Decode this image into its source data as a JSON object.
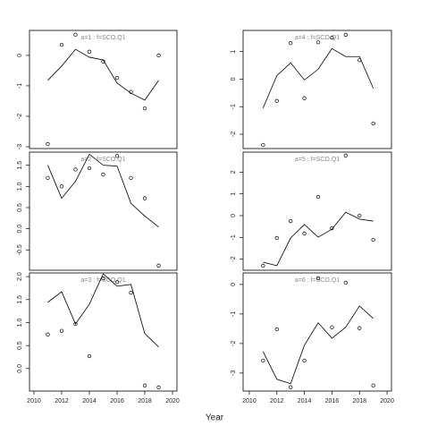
{
  "xlabel": "Year",
  "chart_data": [
    {
      "type": "scatter",
      "title": "a=1 : f=SCO.Q1",
      "x": [
        2011,
        2012,
        2013,
        2014,
        2015,
        2016,
        2017,
        2018,
        2019
      ],
      "values": [
        -2.91,
        0.35,
        0.68,
        0.12,
        -0.2,
        -0.74,
        -1.2,
        -1.74,
        0.0
      ],
      "fitted": [
        -0.82,
        -0.35,
        0.2,
        -0.06,
        -0.15,
        -0.91,
        -1.24,
        -1.47,
        -0.82
      ],
      "xlim": [
        2009.68,
        2020.32
      ],
      "ylim": [
        -3.06,
        0.82
      ],
      "yticks": [
        -3,
        -2,
        -1,
        0
      ],
      "xticks": []
    },
    {
      "type": "scatter",
      "title": "a=4 : f=SCO.Q1",
      "x": [
        2011,
        2012,
        2013,
        2014,
        2015,
        2016,
        2017,
        2018,
        2019
      ],
      "values": [
        -2.39,
        -0.79,
        1.31,
        -0.69,
        1.34,
        1.51,
        1.61,
        0.69,
        -1.61
      ],
      "fitted": [
        -1.05,
        0.13,
        0.59,
        -0.03,
        0.36,
        1.11,
        0.82,
        0.82,
        -0.33
      ],
      "xlim": [
        2009.55,
        2020.32
      ],
      "ylim": [
        -2.52,
        1.77
      ],
      "yticks": [
        -2,
        -1,
        0,
        1
      ],
      "xticks": []
    },
    {
      "type": "scatter",
      "title": "a=2 : f=SCO.Q1",
      "x": [
        2011,
        2012,
        2013,
        2014,
        2015,
        2016,
        2017,
        2018,
        2019
      ],
      "values": [
        1.2,
        1.0,
        1.4,
        1.43,
        1.28,
        1.72,
        1.2,
        0.72,
        -0.87
      ],
      "fitted": [
        1.5,
        0.72,
        1.12,
        1.76,
        1.5,
        1.48,
        0.6,
        0.3,
        0.04
      ],
      "xlim": [
        2009.68,
        2020.32
      ],
      "ylim": [
        -0.98,
        1.81
      ],
      "yticks": [
        -0.5,
        {
          "value": 0,
          "label": "0.0"
        },
        0.5,
        {
          "value": 1,
          "label": "1.0"
        },
        1.5
      ],
      "xticks": []
    },
    {
      "type": "scatter",
      "title": "a=5 : f=SCO.Q1",
      "x": [
        2011,
        2012,
        2013,
        2014,
        2015,
        2016,
        2017,
        2018,
        2019
      ],
      "values": [
        -2.3,
        -1.03,
        -0.25,
        -0.82,
        0.86,
        -0.58,
        2.76,
        0.0,
        -1.11
      ],
      "fitted": [
        -2.14,
        -2.3,
        -1.03,
        -0.41,
        -0.99,
        -0.62,
        0.16,
        -0.16,
        -0.25
      ],
      "xlim": [
        2009.55,
        2020.32
      ],
      "ylim": [
        -2.51,
        2.92
      ],
      "yticks": [
        -2,
        -1,
        0,
        1,
        2
      ],
      "xticks": []
    },
    {
      "type": "scatter",
      "title": "a=3 : f=SCO.Q1",
      "x": [
        2011,
        2012,
        2013,
        2014,
        2015,
        2016,
        2017,
        2018,
        2019
      ],
      "values": [
        0.74,
        0.82,
        0.97,
        0.27,
        1.96,
        1.88,
        1.65,
        -0.37,
        -0.41
      ],
      "fitted": [
        1.44,
        1.67,
        0.97,
        1.4,
        2.06,
        1.79,
        1.83,
        0.76,
        0.47
      ],
      "xlim": [
        2009.68,
        2020.32
      ],
      "ylim": [
        -0.49,
        2.08
      ],
      "yticks": [
        {
          "value": 0,
          "label": "0.0"
        },
        0.5,
        {
          "value": 1,
          "label": "1.0"
        },
        1.5,
        {
          "value": 2,
          "label": "2.0"
        }
      ],
      "xticks": [
        2010,
        2012,
        2014,
        2016,
        2018,
        2020
      ]
    },
    {
      "type": "scatter",
      "title": "a=6 : f=SCO.Q1",
      "x": [
        2011,
        2012,
        2013,
        2014,
        2015,
        2016,
        2017,
        2018,
        2019
      ],
      "values": [
        -2.58,
        -1.52,
        -3.48,
        -2.58,
        0.21,
        -1.45,
        0.06,
        -1.48,
        -3.42
      ],
      "fitted": [
        -2.27,
        -3.21,
        -3.36,
        -2.06,
        -1.3,
        -1.82,
        -1.45,
        -0.73,
        -1.15
      ],
      "xlim": [
        2009.55,
        2020.32
      ],
      "ylim": [
        -3.61,
        0.39
      ],
      "yticks": [
        -3,
        -2,
        -1,
        0
      ],
      "xticks": [
        2010,
        2012,
        2014,
        2016,
        2018,
        2020
      ]
    }
  ]
}
